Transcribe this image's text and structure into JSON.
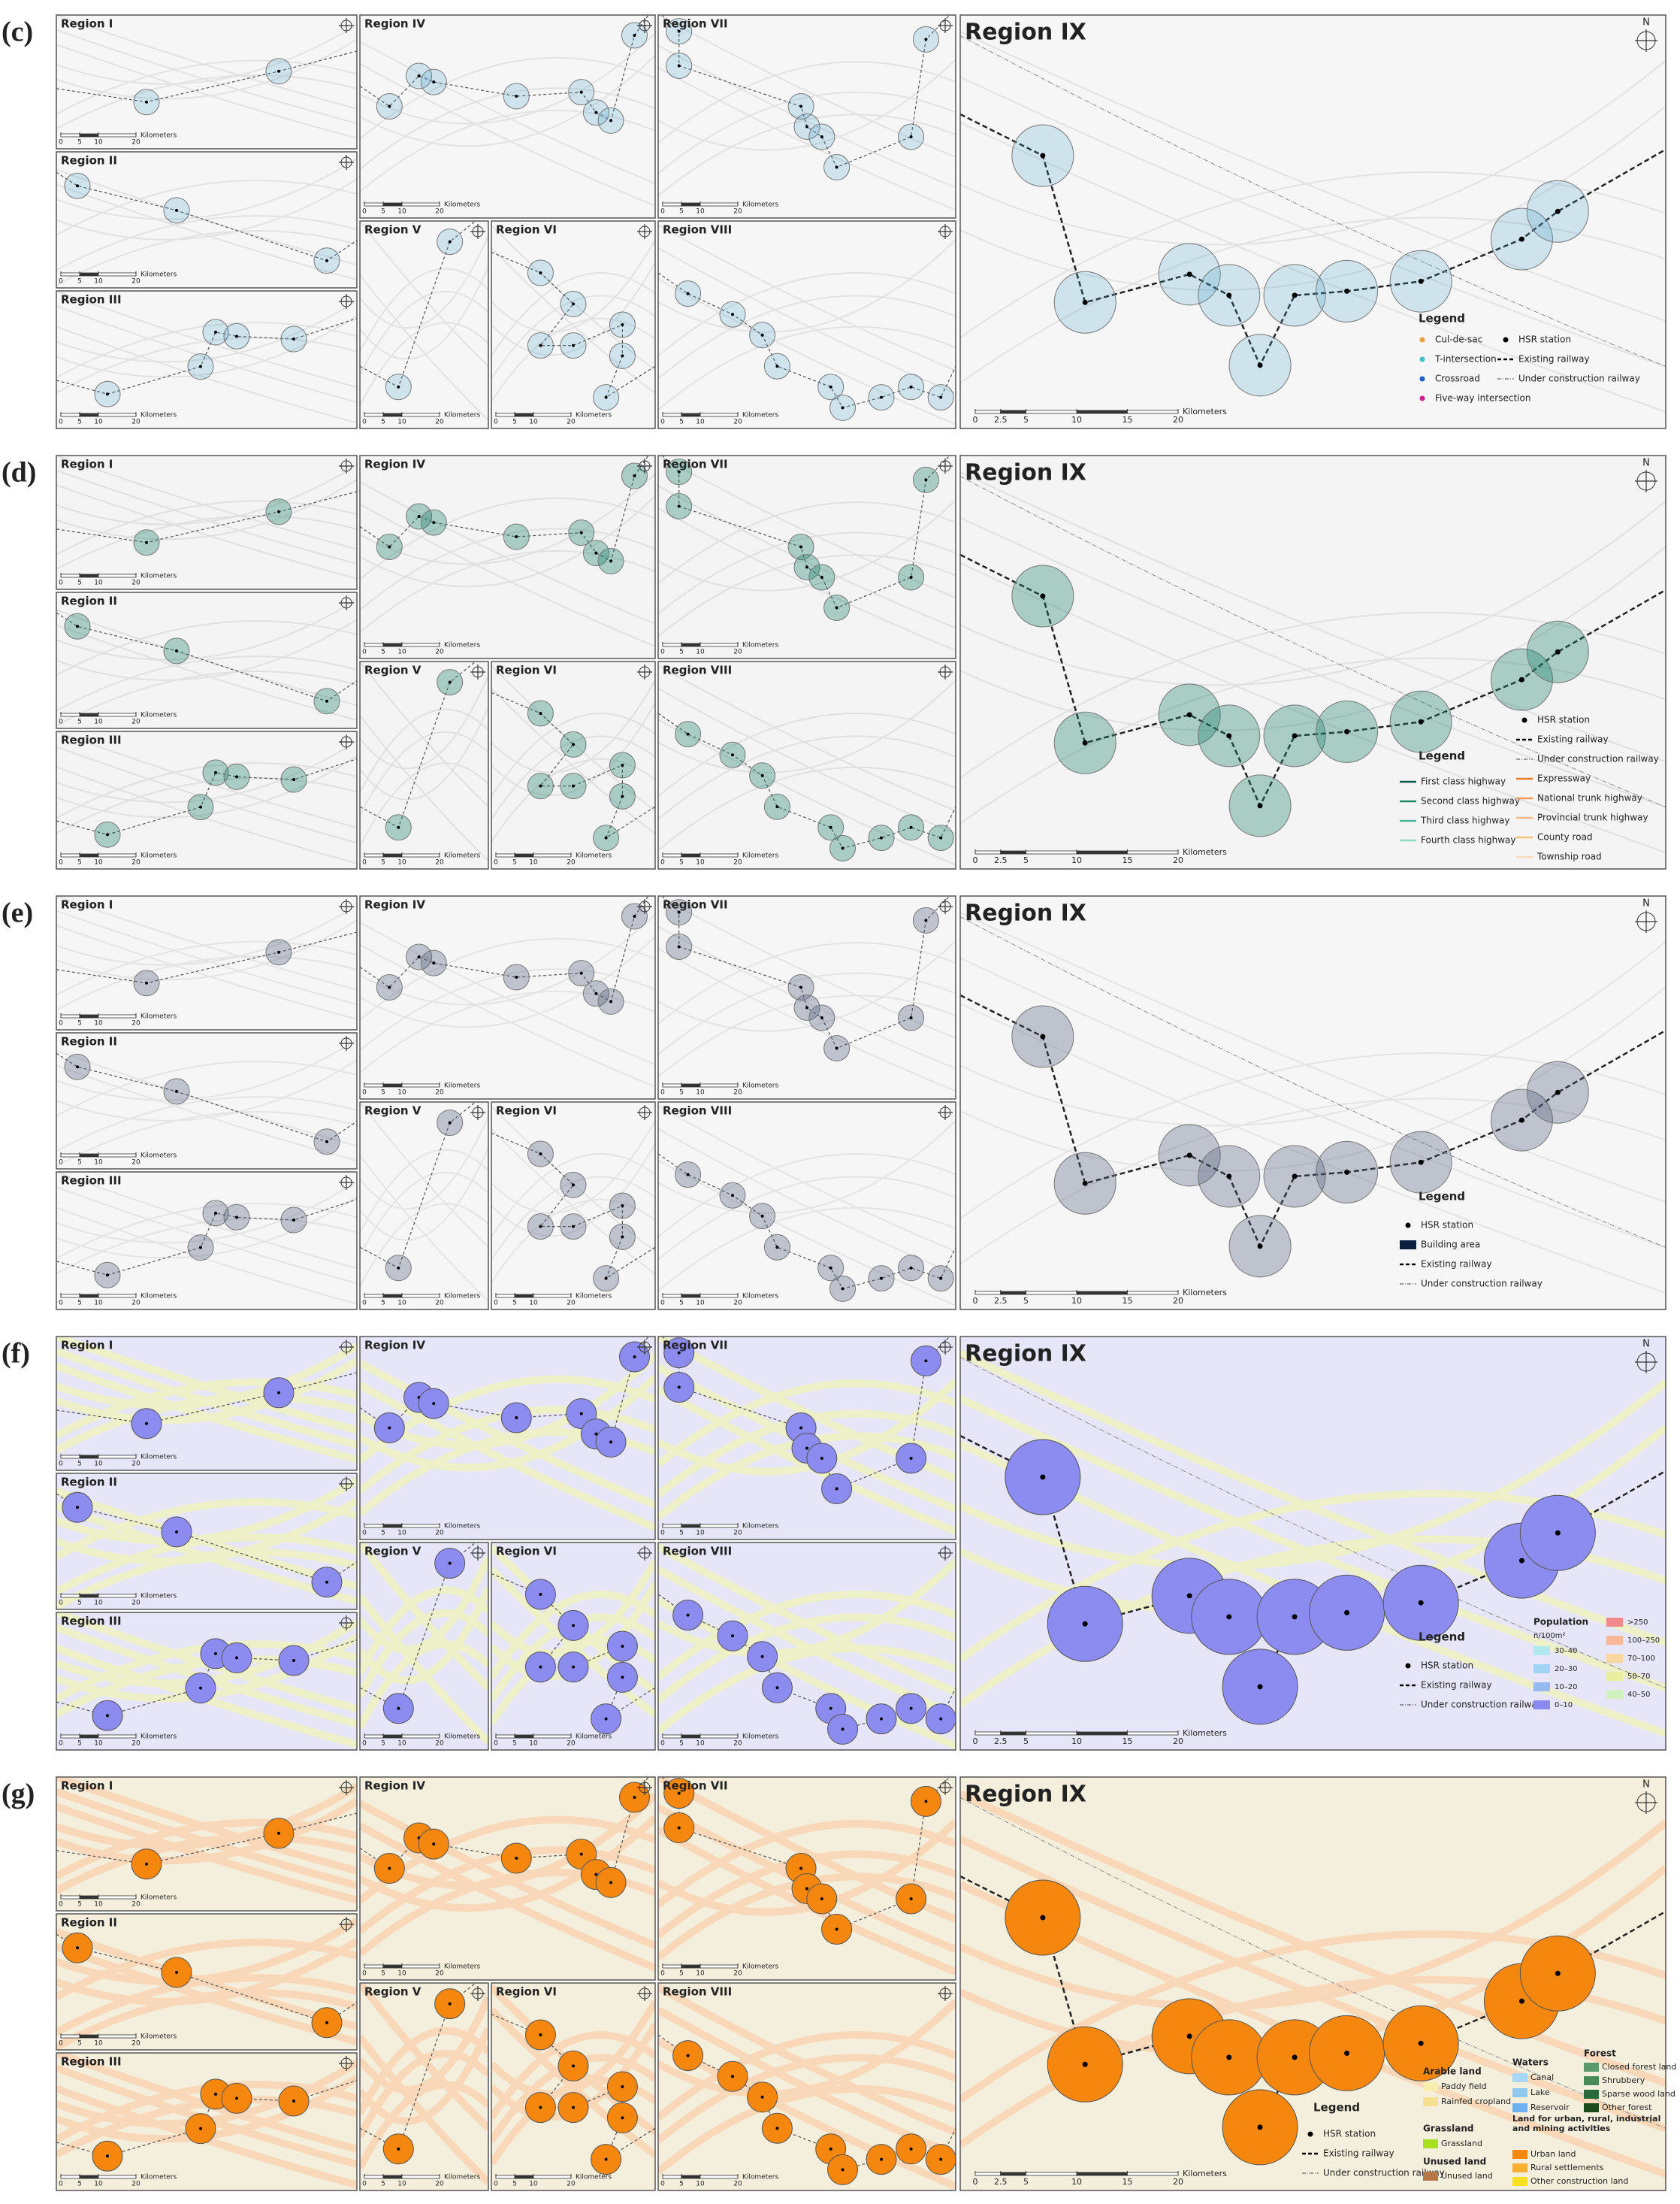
{
  "north": "N",
  "rows": [
    {
      "label": "(c)",
      "regions": [
        "Region I",
        "Region II",
        "Region III",
        "Region IV",
        "Region V",
        "Region VI",
        "Region VII",
        "Region VIII",
        "Region IX"
      ],
      "scale_small": {
        "ticks": [
          0,
          5,
          10,
          20
        ],
        "unit": "Kilometers"
      },
      "scale_large": {
        "ticks": [
          0,
          2.5,
          5,
          10,
          15,
          20
        ],
        "unit": "Kilometers"
      },
      "legend": {
        "title": "Legend",
        "items": [
          {
            "label": "Cul-de-sac",
            "color": "#f0a040",
            "symbol": "dot"
          },
          {
            "label": "T-intersection",
            "color": "#40c0c0",
            "symbol": "dot"
          },
          {
            "label": "Crossroad",
            "color": "#1f5fd0",
            "symbol": "dot"
          },
          {
            "label": "Five-way intersection",
            "color": "#d02090",
            "symbol": "dot"
          },
          {
            "label": "HSR station",
            "color": "#000000",
            "symbol": "dot"
          },
          {
            "label": "Existing railway",
            "color": "#000000",
            "symbol": "dash"
          },
          {
            "label": "Under construction railway",
            "color": "#666666",
            "symbol": "dashdot"
          }
        ]
      }
    },
    {
      "label": "(d)",
      "regions": [
        "Region I",
        "Region II",
        "Region III",
        "Region IV",
        "Region V",
        "Region VI",
        "Region VII",
        "Region VIII",
        "Region IX"
      ],
      "scale_small": {
        "ticks": [
          0,
          5,
          10,
          20
        ],
        "unit": "Kilometers"
      },
      "scale_large": {
        "ticks": [
          0,
          2.5,
          5,
          10,
          15,
          20
        ],
        "unit": "Kilometers"
      },
      "legend": {
        "title": "Legend",
        "items": [
          {
            "label": "First class highway",
            "color": "#0a5a4a",
            "symbol": "line"
          },
          {
            "label": "Second class highway",
            "color": "#1a8a6a",
            "symbol": "line"
          },
          {
            "label": "Third class highway",
            "color": "#4ab89a",
            "symbol": "line"
          },
          {
            "label": "Fourth class highway",
            "color": "#8ad8c8",
            "symbol": "line"
          },
          {
            "label": "HSR station",
            "color": "#000000",
            "symbol": "dot"
          },
          {
            "label": "Existing railway",
            "color": "#000000",
            "symbol": "dash"
          },
          {
            "label": "Under construction railway",
            "color": "#666666",
            "symbol": "dashdot"
          },
          {
            "label": "Expressway",
            "color": "#e87a2a",
            "symbol": "line"
          },
          {
            "label": "National trunk highway",
            "color": "#f29a5a",
            "symbol": "line"
          },
          {
            "label": "Provincial trunk highway",
            "color": "#f5b889",
            "symbol": "line"
          },
          {
            "label": "County road",
            "color": "#f4c27a",
            "symbol": "line"
          },
          {
            "label": "Township road",
            "color": "#f9dcc0",
            "symbol": "line"
          }
        ]
      }
    },
    {
      "label": "(e)",
      "regions": [
        "Region I",
        "Region II",
        "Region III",
        "Region IV",
        "Region V",
        "Region VI",
        "Region VII",
        "Region VIII",
        "Region IX"
      ],
      "scale_small": {
        "ticks": [
          0,
          5,
          10,
          20
        ],
        "unit": "Kilometers"
      },
      "scale_large": {
        "ticks": [
          0,
          2.5,
          5,
          10,
          15,
          20
        ],
        "unit": "Kilometers"
      },
      "legend": {
        "title": "Legend",
        "items": [
          {
            "label": "HSR station",
            "color": "#000000",
            "symbol": "dot"
          },
          {
            "label": "Building area",
            "color": "#0d1f40",
            "symbol": "rect"
          },
          {
            "label": "Existing railway",
            "color": "#000000",
            "symbol": "dash"
          },
          {
            "label": "Under construction railway",
            "color": "#666666",
            "symbol": "dashdot"
          }
        ]
      }
    },
    {
      "label": "(f)",
      "regions": [
        "Region I",
        "Region II",
        "Region III",
        "Region IV",
        "Region V",
        "Region VI",
        "Region VII",
        "Region VIII",
        "Region IX"
      ],
      "scale_small": {
        "ticks": [
          0,
          5,
          10,
          20
        ],
        "unit": "Kilometers"
      },
      "scale_large": {
        "ticks": [
          0,
          2.5,
          5,
          10,
          15,
          20
        ],
        "unit": "Kilometers"
      },
      "legend": {
        "title": "Legend",
        "items": [
          {
            "label": "HSR station",
            "color": "#000000",
            "symbol": "dot"
          },
          {
            "label": "Existing railway",
            "color": "#000000",
            "symbol": "dash"
          },
          {
            "label": "Under construction railway",
            "color": "#666666",
            "symbol": "dashdot"
          }
        ],
        "population": {
          "title": "Population",
          "unit": "n/100m²",
          "classes": [
            {
              "label": "30–40",
              "color": "#b0e8f0"
            },
            {
              "label": "20–30",
              "color": "#a0d4f4"
            },
            {
              "label": "10–20",
              "color": "#98b8f4"
            },
            {
              "label": "0–10",
              "color": "#8a8af0"
            },
            {
              "label": ">250",
              "color": "#f08a8a"
            },
            {
              "label": "100–250",
              "color": "#f8b898"
            },
            {
              "label": "70–100",
              "color": "#f8d8a0"
            },
            {
              "label": "50–70",
              "color": "#e8f0a0"
            },
            {
              "label": "40–50",
              "color": "#d0f0c0"
            }
          ]
        }
      }
    },
    {
      "label": "(g)",
      "regions": [
        "Region I",
        "Region II",
        "Region III",
        "Region IV",
        "Region V",
        "Region VI",
        "Region VII",
        "Region VIII",
        "Region IX"
      ],
      "scale_small": {
        "ticks": [
          0,
          5,
          10,
          20
        ],
        "unit": "Kilometers"
      },
      "scale_large": {
        "ticks": [
          0,
          2.5,
          5,
          10,
          15,
          20
        ],
        "unit": "Kilometers"
      },
      "legend": {
        "title": "Legend",
        "items": [
          {
            "label": "HSR station",
            "color": "#000000",
            "symbol": "dot"
          },
          {
            "label": "Existing railway",
            "color": "#000000",
            "symbol": "dash"
          },
          {
            "label": "Under construction railway",
            "color": "#666666",
            "symbol": "dashdot"
          }
        ],
        "groups": [
          {
            "title": "Arable land",
            "items": [
              {
                "label": "Paddy field",
                "color": "#f7eeb0"
              },
              {
                "label": "Rainfed cropland",
                "color": "#f5e090"
              }
            ]
          },
          {
            "title": "Grassland",
            "items": [
              {
                "label": "Grassland",
                "color": "#a8e020"
              }
            ]
          },
          {
            "title": "Unused land",
            "items": [
              {
                "label": "Unused land",
                "color": "#b87848"
              }
            ]
          },
          {
            "title": "Waters",
            "items": [
              {
                "label": "Canal",
                "color": "#a8d8f8"
              },
              {
                "label": "Lake",
                "color": "#90c8f0"
              },
              {
                "label": "Reservoir",
                "color": "#70b0f0"
              }
            ]
          },
          {
            "title": "Land for urban, rural, industrial and mining activities",
            "items": [
              {
                "label": "Urban land",
                "color": "#f5870f"
              },
              {
                "label": "Rural settlements",
                "color": "#f8b030"
              },
              {
                "label": "Other construction land",
                "color": "#f8e020"
              }
            ]
          },
          {
            "title": "Forest",
            "items": [
              {
                "label": "Closed forest land",
                "color": "#5a9a6a"
              },
              {
                "label": "Shrubbery",
                "color": "#4a8a5a"
              },
              {
                "label": "Sparse wood land",
                "color": "#2a6a3a"
              },
              {
                "label": "Other forest",
                "color": "#1a4a1a"
              }
            ]
          }
        ]
      }
    }
  ]
}
